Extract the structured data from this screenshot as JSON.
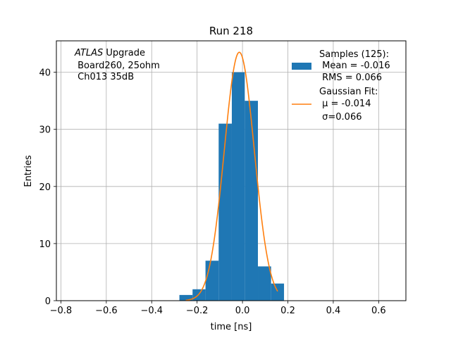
{
  "chart_data": {
    "type": "bar",
    "title": "Run 218",
    "xlabel": "time [ns]",
    "ylabel": "Entries",
    "xlim": [
      -0.82,
      0.72
    ],
    "ylim": [
      0,
      45.5
    ],
    "grid": true,
    "xticks": [
      -0.8,
      -0.6,
      -0.4,
      -0.2,
      0.0,
      0.2,
      0.4,
      0.6
    ],
    "xtick_labels": [
      "−0.8",
      "−0.6",
      "−0.4",
      "−0.2",
      "0.0",
      "0.2",
      "0.4",
      "0.6"
    ],
    "yticks": [
      0,
      10,
      20,
      30,
      40
    ],
    "ytick_labels": [
      "0",
      "10",
      "20",
      "30",
      "40"
    ],
    "histogram": {
      "name": "Samples (125):",
      "color": "#1f77b4",
      "bin_edges": [
        -0.278,
        -0.22,
        -0.163,
        -0.105,
        -0.047,
        0.01,
        0.068,
        0.126,
        0.183
      ],
      "counts": [
        1,
        2,
        7,
        31,
        40,
        35,
        6,
        3
      ]
    },
    "fit": {
      "name": "Gaussian Fit:",
      "color": "#ff7f0e",
      "type": "gaussian",
      "amplitude": 43.5,
      "mu": -0.014,
      "sigma": 0.066,
      "x_range": [
        -0.25,
        0.155
      ]
    },
    "annotation": {
      "lines": [
        {
          "italic": "ATLAS",
          "text": " Upgrade"
        },
        {
          "italic": "",
          "text": " Board260, 25ohm"
        },
        {
          "italic": "",
          "text": " Ch013 35dB"
        }
      ]
    },
    "legend": {
      "position": "top-right",
      "entries": [
        {
          "kind": "patch",
          "lines": [
            "Samples (125):",
            " Mean = -0.016",
            " RMS = 0.066"
          ]
        },
        {
          "kind": "line",
          "lines": [
            "Gaussian Fit:",
            " μ = -0.014",
            " σ=0.066"
          ]
        }
      ]
    }
  }
}
